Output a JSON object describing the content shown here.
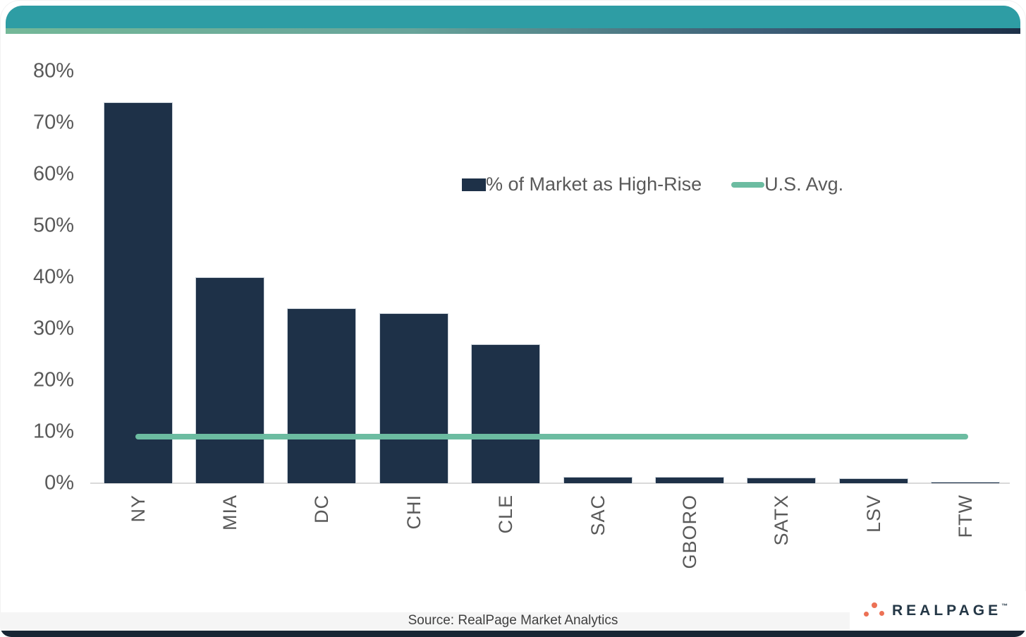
{
  "header": {
    "teal_color": "#2e9da4",
    "gradient_left_color": "#74b898",
    "gradient_right_color": "#1d3048"
  },
  "chart_data": {
    "type": "bar",
    "title": "",
    "xlabel": "",
    "ylabel": "",
    "categories": [
      "NY",
      "MIA",
      "DC",
      "CHI",
      "CLE",
      "SAC",
      "GBORO",
      "SATX",
      "LSV",
      "FTW"
    ],
    "series": [
      {
        "name": "% of Market as High-Rise",
        "type": "bar",
        "color": "#1e3148",
        "values": [
          74,
          40,
          34,
          33,
          27,
          1.2,
          1.2,
          1.1,
          0.9,
          0.3
        ]
      },
      {
        "name": "U.S. Avg.",
        "type": "line",
        "color": "#6cbca1",
        "values": [
          9,
          9,
          9,
          9,
          9,
          9,
          9,
          9,
          9,
          9
        ]
      }
    ],
    "ylim": [
      0,
      80
    ],
    "yticks": [
      0,
      10,
      20,
      30,
      40,
      50,
      60,
      70,
      80
    ],
    "ytick_labels": [
      "0%",
      "10%",
      "20%",
      "30%",
      "40%",
      "50%",
      "60%",
      "70%",
      "80%"
    ],
    "grid": false,
    "legend_position": "upper-right-of-center"
  },
  "legend": {
    "bar_label": "% of Market as High-Rise",
    "line_label": "U.S. Avg."
  },
  "footer": {
    "source": "Source: RealPage Market Analytics",
    "bar_color": "#182634"
  },
  "logo": {
    "text": "REALPAGE",
    "trademark": "™",
    "dot_color": "#ec7155",
    "text_color": "#243746"
  }
}
